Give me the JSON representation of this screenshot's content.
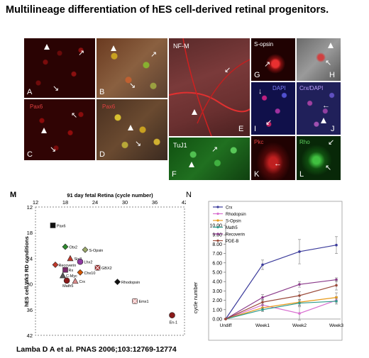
{
  "title": "Multilineage differentiation of hES cell-derived retinal progenitors.",
  "citation": "Lamba D A et al. PNAS 2006;103:12769-12774",
  "micro_panels": {
    "A": {
      "letter": "A"
    },
    "B": {
      "letter": "B"
    },
    "C": {
      "letter": "C",
      "stain": "Pax6"
    },
    "D": {
      "letter": "D",
      "stain": "Pax6"
    },
    "E": {
      "letter": "E",
      "stain": "NF-M"
    },
    "F": {
      "letter": "F",
      "stain": "TuJ1"
    },
    "G": {
      "letter": "G",
      "stain": "S-opsin"
    },
    "H": {
      "letter": "H"
    },
    "I": {
      "letter": "I",
      "stain": "DAPI"
    },
    "J": {
      "letter": "J",
      "stain": "Crx/DAPI"
    },
    "K": {
      "letter": "K",
      "stain": "Pkc"
    },
    "L": {
      "letter": "L",
      "stain": "Rho"
    }
  },
  "chart_data": [
    {
      "panel": "M",
      "type": "scatter",
      "title": "91 day fetal Retina (cycle number)",
      "ylabel": "hES cell Wk3 RD conditions",
      "xlim": [
        12,
        42
      ],
      "ylim": [
        12,
        42
      ],
      "x_ticks": [
        12,
        18,
        24,
        30,
        36,
        42
      ],
      "y_ticks": [
        12,
        18,
        24,
        30,
        36,
        42
      ],
      "y_inverted": true,
      "points": [
        {
          "label": "Pax6",
          "x": 15.5,
          "y": 16.3,
          "marker": "square",
          "color": "#111111"
        },
        {
          "label": "Otx2",
          "x": 18.0,
          "y": 21.3,
          "marker": "diamond",
          "color": "#2e8b2e"
        },
        {
          "label": "S-Opsin",
          "x": 22.0,
          "y": 22.0,
          "marker": "diamond",
          "color": "#9aa86a"
        },
        {
          "label": "Six3",
          "x": 19.0,
          "y": 24.0,
          "marker": "triangle",
          "color": "#c0392b"
        },
        {
          "label": "Lhx2",
          "x": 21.0,
          "y": 24.8,
          "marker": "circle",
          "color": "#8e3aa0"
        },
        {
          "label": "Recoverin",
          "x": 16.0,
          "y": 25.5,
          "marker": "diamond",
          "color": "#c0392b"
        },
        {
          "label": "GBX2",
          "x": 24.5,
          "y": 26.2,
          "marker": "square-x",
          "color": "#b03a3a"
        },
        {
          "label": "Rx",
          "x": 18.0,
          "y": 26.7,
          "marker": "square",
          "color": "#7a2a6a"
        },
        {
          "label": "Chx10",
          "x": 21.0,
          "y": 27.3,
          "marker": "diamond",
          "color": "#d35400"
        },
        {
          "label": "C-Myc",
          "x": 17.5,
          "y": 28.0,
          "marker": "triangle",
          "color": "#555555"
        },
        {
          "label": "Crx",
          "x": 20.0,
          "y": 29.3,
          "marker": "triangle",
          "color": "#d98a8a"
        },
        {
          "label": "Math5",
          "x": 18.3,
          "y": 29.2,
          "marker": "circle",
          "color": "#8b1a1a"
        },
        {
          "label": "Rhodopsin",
          "x": 28.5,
          "y": 29.5,
          "marker": "diamond",
          "color": "#111111"
        },
        {
          "label": "Emx1",
          "x": 32.0,
          "y": 34.0,
          "marker": "square-x",
          "color": "#e8b0b0"
        },
        {
          "label": "En-1",
          "x": 39.5,
          "y": 37.3,
          "marker": "circle",
          "color": "#8b1a1a"
        }
      ]
    },
    {
      "panel": "N",
      "type": "line",
      "ylabel": "cycle number",
      "categories": [
        "Undiff",
        "Week1",
        "Week2",
        "Week3"
      ],
      "ylim": [
        0,
        10
      ],
      "y_ticks": [
        0.0,
        1.0,
        2.0,
        3.0,
        4.0,
        5.0,
        6.0,
        7.0,
        8.0,
        9.0,
        10.0
      ],
      "legend_position": "top-left",
      "series": [
        {
          "name": "Crx",
          "color": "#3b3b9b",
          "values": [
            0,
            5.8,
            7.2,
            7.9
          ],
          "errors": [
            0,
            0.5,
            1.3,
            0.9
          ]
        },
        {
          "name": "Rhodopsin",
          "color": "#d86fd0",
          "values": [
            0,
            1.5,
            0.6,
            2.0
          ],
          "errors": [
            0,
            0.3,
            0.7,
            0.4
          ]
        },
        {
          "name": "S-Opsin",
          "color": "#e89a1a",
          "values": [
            0,
            1.2,
            1.8,
            2.3
          ],
          "errors": [
            0,
            0.3,
            0.3,
            0.5
          ]
        },
        {
          "name": "Math5",
          "color": "#2f9a8a",
          "values": [
            0,
            1.0,
            1.7,
            1.9
          ],
          "errors": [
            0,
            0.2,
            0.3,
            0.3
          ]
        },
        {
          "name": "Recoverin",
          "color": "#8a3a8a",
          "values": [
            0,
            2.3,
            3.7,
            4.2
          ],
          "errors": [
            0,
            0.3,
            0.3,
            0.2
          ]
        },
        {
          "name": "PDE-B",
          "color": "#9a4a3a",
          "values": [
            0,
            1.8,
            2.5,
            3.6
          ],
          "errors": [
            0,
            0.3,
            0.4,
            0.5
          ]
        }
      ]
    }
  ]
}
